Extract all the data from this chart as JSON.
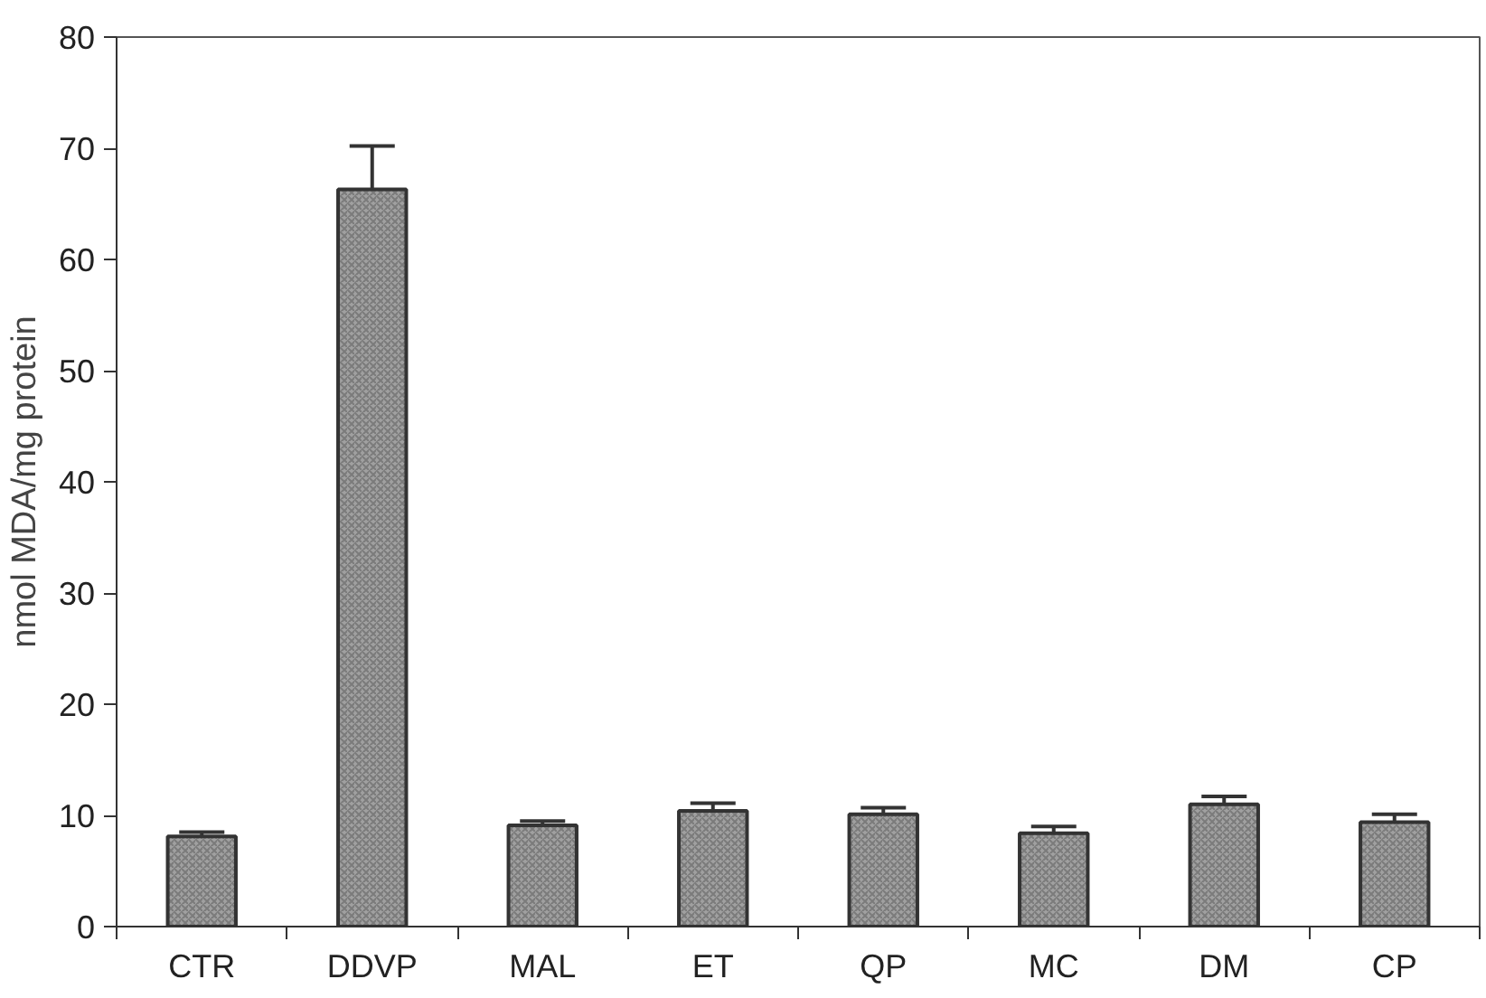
{
  "chart_data": {
    "type": "bar",
    "ylabel": "nmol MDA/mg protein",
    "categories": [
      "CTR",
      "DDVP",
      "MAL",
      "ET",
      "QP",
      "MC",
      "DM",
      "CP"
    ],
    "values": [
      8.1,
      66.3,
      9.1,
      10.4,
      10.1,
      8.4,
      11.0,
      9.4
    ],
    "errors": [
      0.4,
      3.9,
      0.4,
      0.7,
      0.6,
      0.6,
      0.7,
      0.7
    ],
    "color": "#a0a0a0",
    "ylim": [
      0,
      80
    ],
    "yticks": [
      0,
      10,
      20,
      30,
      40,
      50,
      60,
      70,
      80
    ],
    "grid": false
  }
}
